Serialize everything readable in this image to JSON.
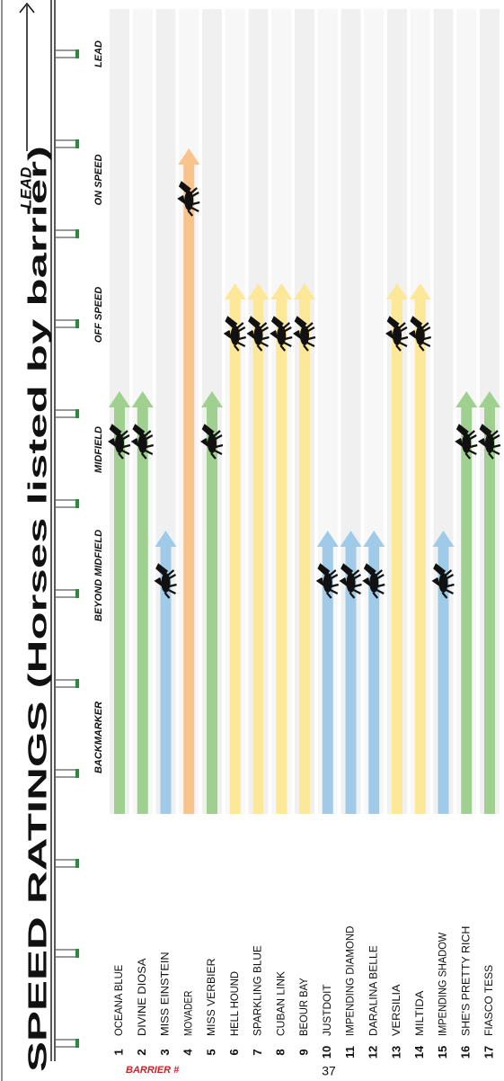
{
  "chart_data": {
    "type": "speed-map",
    "title": "SPEED RATINGS (Horses listed by barrier)",
    "lead_label": "LEAD",
    "categories": [
      "BACKMARKER",
      "BEYOND MIDFIELD",
      "MIDFIELD",
      "OFF SPEED",
      "ON SPEED",
      "LEAD"
    ],
    "category_colors": [
      "#cccccc",
      "#9fcbe8",
      "#9fd08f",
      "#fde89a",
      "#f9c48b",
      "#f9a070"
    ],
    "barrier_label": "BARRIER #",
    "page_number": "37",
    "horses": [
      {
        "barrier": 1,
        "name": "OCEANA BLUE",
        "rating": "MIDFIELD"
      },
      {
        "barrier": 2,
        "name": "DIVINE DIOSA",
        "rating": "MIDFIELD"
      },
      {
        "barrier": 3,
        "name": "MISS EINSTEIN",
        "rating": "BEYOND MIDFIELD"
      },
      {
        "barrier": 4,
        "name": "MOVADER",
        "rating": "ON SPEED"
      },
      {
        "barrier": 5,
        "name": "MISS VERBIER",
        "rating": "MIDFIELD"
      },
      {
        "barrier": 6,
        "name": "HELL HOUND",
        "rating": "OFF SPEED"
      },
      {
        "barrier": 7,
        "name": "SPARKLING BLUE",
        "rating": "OFF SPEED"
      },
      {
        "barrier": 8,
        "name": "CUBAN LINK",
        "rating": "OFF SPEED"
      },
      {
        "barrier": 9,
        "name": "BEOUR BAY",
        "rating": "OFF SPEED"
      },
      {
        "barrier": 10,
        "name": "JUSTDOIT",
        "rating": "BEYOND MIDFIELD"
      },
      {
        "barrier": 11,
        "name": "IMPENDING DIAMOND",
        "rating": "BEYOND MIDFIELD"
      },
      {
        "barrier": 12,
        "name": "DARALINA BELLE",
        "rating": "BEYOND MIDFIELD"
      },
      {
        "barrier": 13,
        "name": "VERSILIA",
        "rating": "OFF SPEED"
      },
      {
        "barrier": 14,
        "name": "MILTIDA",
        "rating": "OFF SPEED"
      },
      {
        "barrier": 15,
        "name": "IMPENDING SHADOW",
        "rating": "BEYOND MIDFIELD"
      },
      {
        "barrier": 16,
        "name": "SHE'S PRETTY RICH",
        "rating": "MIDFIELD"
      },
      {
        "barrier": 17,
        "name": "FIASCO TESS",
        "rating": "MIDFIELD"
      }
    ]
  }
}
